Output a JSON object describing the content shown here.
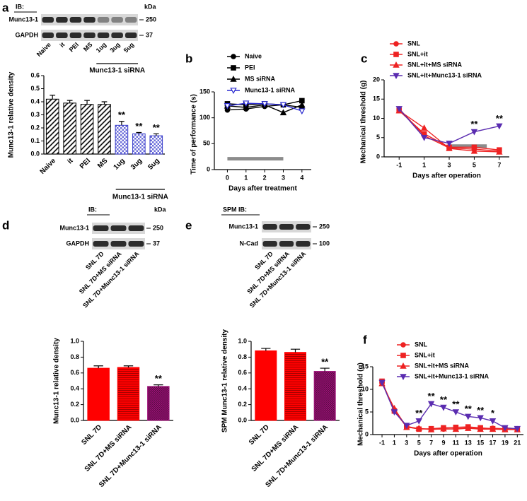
{
  "chart_data": [
    {
      "panel": "a",
      "type": "bar",
      "blot": {
        "header": "IB:",
        "unit": "kDa",
        "rows": [
          {
            "label": "Munc13-1",
            "marker": "250"
          },
          {
            "label": "GAPDH",
            "marker": "37"
          }
        ],
        "lanes": [
          "Naive",
          "it",
          "PEI",
          "MS",
          "1ug",
          "3ug",
          "5ug"
        ],
        "groups": [
          {
            "label": "Munc13-1 siRNA",
            "lanes": [
              "1ug",
              "3ug",
              "5ug"
            ]
          }
        ]
      },
      "ylabel": "Munc13-1 relative density",
      "categories": [
        "Naive",
        "it",
        "PEI",
        "MS",
        "1ug",
        "3ug",
        "5ug"
      ],
      "values": [
        0.42,
        0.39,
        0.38,
        0.38,
        0.22,
        0.155,
        0.14
      ],
      "errors": [
        0.03,
        0.02,
        0.03,
        0.02,
        0.03,
        0.01,
        0.015
      ],
      "colors": [
        "#000000",
        "#000000",
        "#000000",
        "#000000",
        "#3b3fcc",
        "#3b3fcc",
        "#3b3fcc"
      ],
      "patterns": [
        "hatch",
        "hatch",
        "hatch",
        "hatch",
        "check",
        "check",
        "check"
      ],
      "groups": [
        {
          "label": "Munc13-1 siRNA",
          "categories": [
            "1ug",
            "3ug",
            "5ug"
          ]
        }
      ],
      "annotations": [
        {
          "category": "1ug",
          "label": "**"
        },
        {
          "category": "3ug",
          "label": "**"
        },
        {
          "category": "5ug",
          "label": "**"
        }
      ],
      "ylim": [
        0,
        0.6
      ],
      "yticks": [
        {
          "value": 0,
          "label": "0.0"
        },
        {
          "value": 0.1,
          "label": "0.1"
        },
        {
          "value": 0.2,
          "label": "0.2"
        },
        {
          "value": 0.3,
          "label": "0.3"
        },
        {
          "value": 0.4,
          "label": "0.4"
        },
        {
          "value": 0.5,
          "label": "0.5"
        },
        {
          "value": 0.6,
          "label": "0.6"
        }
      ]
    },
    {
      "panel": "b",
      "type": "line",
      "ylabel": "Time of performance (s)",
      "xlabel": "Days after treatment",
      "x": [
        0,
        1,
        2,
        3,
        4
      ],
      "series": [
        {
          "name": "Naive",
          "color": "#000000",
          "marker": "circle",
          "values": [
            115,
            117,
            122,
            125,
            120
          ]
        },
        {
          "name": "PEI",
          "color": "#000000",
          "marker": "square",
          "values": [
            127,
            125,
            127,
            125,
            133
          ]
        },
        {
          "name": "MS siRNA",
          "color": "#000000",
          "marker": "triangle",
          "values": [
            123,
            120,
            125,
            110,
            125
          ]
        },
        {
          "name": "Munc13-1 siRNA",
          "color": "#2b2bd0",
          "marker": "triangle-down-open",
          "values": [
            123,
            128,
            127,
            125,
            113
          ]
        }
      ],
      "xlim": [
        -0.7,
        4.5
      ],
      "xticks": [
        0,
        1,
        2,
        3,
        4
      ],
      "ylim": [
        0,
        150
      ],
      "yticks": [
        0,
        50,
        100,
        150
      ]
    },
    {
      "panel": "c",
      "type": "line",
      "ylabel": "Mechanical threshold (g)",
      "xlabel": "Days after operation",
      "x": [
        -1,
        1,
        3,
        5,
        7
      ],
      "series": [
        {
          "name": "SNL",
          "color": "#ee2222",
          "marker": "circle",
          "values": [
            12.5,
            5.5,
            2.3,
            2.0,
            1.5
          ]
        },
        {
          "name": "SNL+it",
          "color": "#ee2222",
          "marker": "square",
          "values": [
            12,
            6,
            2.5,
            2.5,
            1.8
          ]
        },
        {
          "name": "SNL+it+MS siRNA",
          "color": "#ee2222",
          "marker": "triangle",
          "values": [
            12,
            7.5,
            2.2,
            1.5,
            1.3
          ]
        },
        {
          "name": "SNL+it+Munc13-1 siRNA",
          "color": "#5a2cb0",
          "marker": "triangle-down",
          "values": [
            12.5,
            5,
            3.5,
            6.5,
            8
          ]
        }
      ],
      "annotations": [
        {
          "x": 5,
          "label": "**"
        },
        {
          "x": 7,
          "label": "**"
        }
      ],
      "xlim": [
        -2.2,
        7.8
      ],
      "xticks": [
        -1,
        1,
        3,
        5,
        7
      ],
      "ylim": [
        0,
        20
      ],
      "yticks": [
        0,
        5,
        10,
        15,
        20
      ]
    },
    {
      "panel": "d",
      "type": "bar",
      "blot": {
        "header": "IB:",
        "unit": "kDa",
        "rows": [
          {
            "label": "Munc13-1",
            "marker": "250"
          },
          {
            "label": "GAPDH",
            "marker": "37"
          }
        ],
        "lanes": [
          "SNL 7D",
          "SNL 7D+MS siRNA",
          "SNL 7D+Munc13-1 siRNA"
        ]
      },
      "ylabel": "Munc13-1 relative density",
      "categories": [
        "SNL 7D",
        "SNL 7D+MS siRNA",
        "SNL 7D+Munc13-1 siRNA"
      ],
      "values": [
        0.66,
        0.67,
        0.43
      ],
      "errors": [
        0.03,
        0.02,
        0.02
      ],
      "colors": [
        "#ff0000",
        "#ff0000",
        "#a0137a"
      ],
      "patterns": [
        "solid",
        "stripes",
        "checker"
      ],
      "annotations": [
        {
          "category": "SNL 7D+Munc13-1 siRNA",
          "label": "**"
        }
      ],
      "ylim": [
        0,
        1.0
      ],
      "yticks": [
        {
          "value": 0,
          "label": "0.0"
        },
        {
          "value": 0.2,
          "label": "0.2"
        },
        {
          "value": 0.4,
          "label": "0.4"
        },
        {
          "value": 0.6,
          "label": "0.6"
        },
        {
          "value": 0.8,
          "label": "0.8"
        },
        {
          "value": 1.0,
          "label": "1.0"
        }
      ]
    },
    {
      "panel": "e",
      "type": "bar",
      "blot": {
        "header": "SPM IB:",
        "rows": [
          {
            "label": "Munc13-1",
            "marker": "250"
          },
          {
            "label": "N-Cad",
            "marker": "100"
          }
        ],
        "lanes": [
          "SNL 7D",
          "SNL 7D+MS siRNA",
          "SNL 7D+Munc13-1 siRNA"
        ]
      },
      "ylabel": "SPM Munc13-1 relative density",
      "categories": [
        "SNL 7D",
        "SNL 7D+MS siRNA",
        "SNL 7D+Munc13-1 siRNA"
      ],
      "values": [
        0.88,
        0.86,
        0.62
      ],
      "errors": [
        0.03,
        0.04,
        0.04
      ],
      "colors": [
        "#ff0000",
        "#ff0000",
        "#a0137a"
      ],
      "patterns": [
        "solid",
        "stripes",
        "checker"
      ],
      "annotations": [
        {
          "category": "SNL 7D+Munc13-1 siRNA",
          "label": "**"
        }
      ],
      "ylim": [
        0,
        1.0
      ],
      "yticks": [
        {
          "value": 0,
          "label": "0.0"
        },
        {
          "value": 0.2,
          "label": "0.2"
        },
        {
          "value": 0.4,
          "label": "0.4"
        },
        {
          "value": 0.6,
          "label": "0.6"
        },
        {
          "value": 0.8,
          "label": "0.8"
        },
        {
          "value": 1.0,
          "label": "1.0"
        }
      ]
    },
    {
      "panel": "f",
      "type": "line",
      "ylabel": "Mechanical threshold (g)",
      "xlabel": "Days after operation",
      "x": [
        -1,
        1,
        3,
        5,
        7,
        9,
        11,
        13,
        15,
        17,
        19,
        21
      ],
      "series": [
        {
          "name": "SNL",
          "color": "#ee2222",
          "marker": "circle",
          "values": [
            11.5,
            5.5,
            1.8,
            1.3,
            1.2,
            1.2,
            1.3,
            1.5,
            1.3,
            1.4,
            1.3,
            1.3
          ]
        },
        {
          "name": "SNL+it",
          "color": "#ee2222",
          "marker": "square",
          "values": [
            11.8,
            5.2,
            1.7,
            1.2,
            1.3,
            1.5,
            1.6,
            1.7,
            1.5,
            1.3,
            1.2,
            1.2
          ]
        },
        {
          "name": "SNL+it+MS siRNA",
          "color": "#ee2222",
          "marker": "triangle",
          "values": [
            11.3,
            5.8,
            1.6,
            1.4,
            1.1,
            1.3,
            1.2,
            1.4,
            1.2,
            1.2,
            1.1,
            1.1
          ]
        },
        {
          "name": "SNL+it+Munc13-1 siRNA",
          "color": "#5a2cb0",
          "marker": "triangle-down",
          "values": [
            11.5,
            5,
            2,
            3,
            6.8,
            6,
            5,
            4,
            3.7,
            3,
            1.5,
            1.3
          ]
        }
      ],
      "annotations": [
        {
          "x": 5,
          "label": "**"
        },
        {
          "x": 7,
          "label": "**"
        },
        {
          "x": 9,
          "label": "**"
        },
        {
          "x": 11,
          "label": "**"
        },
        {
          "x": 13,
          "label": "**"
        },
        {
          "x": 15,
          "label": "**"
        },
        {
          "x": 17,
          "label": "*"
        }
      ],
      "xlim": [
        -2.5,
        22
      ],
      "xticks": [
        -1,
        1,
        3,
        5,
        7,
        9,
        11,
        13,
        15,
        17,
        19,
        21
      ],
      "ylim": [
        0,
        15
      ],
      "yticks": [
        0,
        5,
        10,
        15
      ]
    }
  ]
}
